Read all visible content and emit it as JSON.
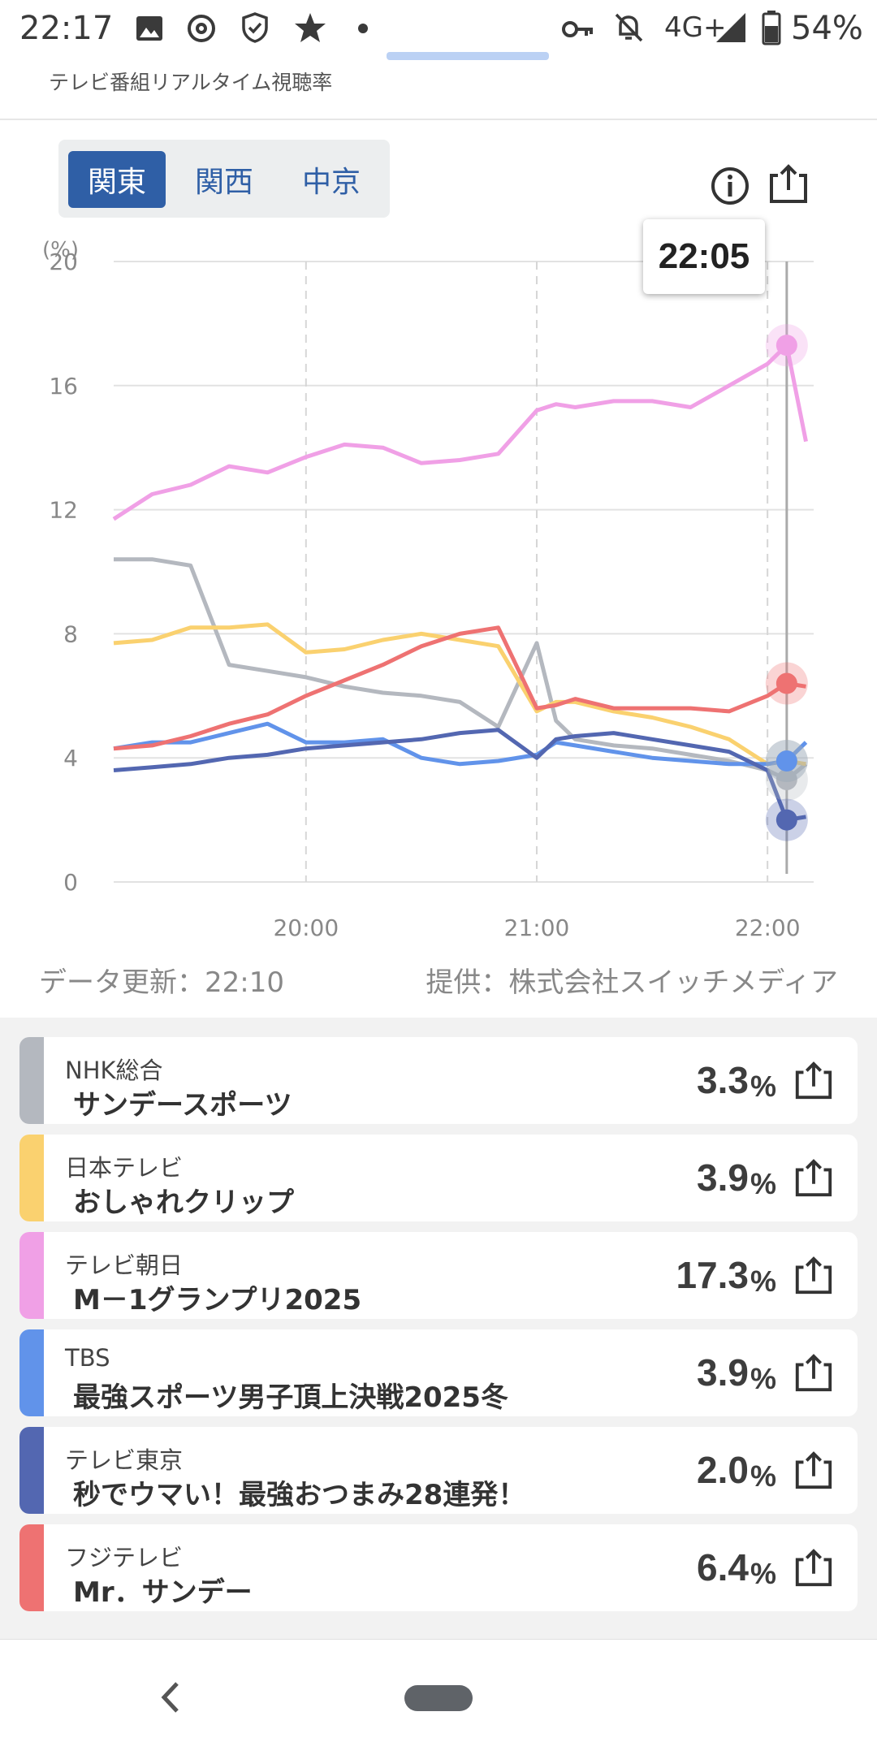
{
  "status_bar": {
    "time": "22:17",
    "network": "4G+",
    "battery": "54%",
    "icons": [
      "image-icon",
      "threads-icon",
      "shield-icon",
      "star-icon",
      "dot-icon",
      "key-icon",
      "bell-off-icon",
      "signal-icon",
      "battery-icon"
    ]
  },
  "header": {
    "subtitle": "テレビ番組リアルタイム視聴率"
  },
  "region_tabs": [
    {
      "label": "関東",
      "active": true
    },
    {
      "label": "関西",
      "active": false
    },
    {
      "label": "中京",
      "active": false
    }
  ],
  "tooltip": {
    "time": "22:05"
  },
  "chart_footer": {
    "updated": "データ更新：22:10",
    "provider": "提供：株式会社スイッチメディア"
  },
  "colors": {
    "accent": "#2f5fa6",
    "nhk": "#b4b8bf",
    "ntv": "#fad16f",
    "tvasahi": "#f0a0e6",
    "tbs": "#6193ea",
    "tvtokyo": "#5367b1",
    "fuji": "#ee7272"
  },
  "chart_data": {
    "type": "line",
    "ylabel": "(%)",
    "ylim": [
      0,
      20
    ],
    "yticks": [
      "0",
      "4",
      "8",
      "12",
      "16",
      "20"
    ],
    "xlim": [
      "19:10",
      "22:12"
    ],
    "xticks": [
      "20:00",
      "21:00",
      "22:00"
    ],
    "x": [
      "19:10",
      "19:20",
      "19:30",
      "19:40",
      "19:50",
      "20:00",
      "20:10",
      "20:20",
      "20:30",
      "20:40",
      "20:50",
      "21:00",
      "21:05",
      "21:10",
      "21:20",
      "21:30",
      "21:40",
      "21:50",
      "22:00",
      "22:05",
      "22:10"
    ],
    "series": [
      {
        "name": "NHK総合",
        "values": [
          10.4,
          10.4,
          10.2,
          7.0,
          6.8,
          6.6,
          6.3,
          6.1,
          6.0,
          5.8,
          5.0,
          7.7,
          5.2,
          4.6,
          4.4,
          4.3,
          4.1,
          3.9,
          3.6,
          3.3,
          3.8
        ]
      },
      {
        "name": "日本テレビ",
        "values": [
          7.7,
          7.8,
          8.2,
          8.2,
          8.3,
          7.4,
          7.5,
          7.8,
          8.0,
          7.8,
          7.6,
          5.5,
          5.8,
          5.8,
          5.5,
          5.3,
          5.0,
          4.6,
          3.8,
          3.9,
          3.8
        ]
      },
      {
        "name": "テレビ朝日",
        "values": [
          11.7,
          12.5,
          12.8,
          13.4,
          13.2,
          13.7,
          14.1,
          14.0,
          13.5,
          13.6,
          13.8,
          15.2,
          15.4,
          15.3,
          15.5,
          15.5,
          15.3,
          16.0,
          16.7,
          17.3,
          14.2
        ]
      },
      {
        "name": "TBS",
        "values": [
          4.3,
          4.5,
          4.5,
          4.8,
          5.1,
          4.5,
          4.5,
          4.6,
          4.0,
          3.8,
          3.9,
          4.1,
          4.5,
          4.4,
          4.2,
          4.0,
          3.9,
          3.8,
          3.8,
          3.9,
          4.5
        ]
      },
      {
        "name": "テレビ東京",
        "values": [
          3.6,
          3.7,
          3.8,
          4.0,
          4.1,
          4.3,
          4.4,
          4.5,
          4.6,
          4.8,
          4.9,
          4.0,
          4.6,
          4.7,
          4.8,
          4.6,
          4.4,
          4.2,
          3.6,
          2.0,
          2.1
        ]
      },
      {
        "name": "フジテレビ",
        "values": [
          4.3,
          4.4,
          4.7,
          5.1,
          5.4,
          6.0,
          6.5,
          7.0,
          7.6,
          8.0,
          8.2,
          5.6,
          5.7,
          5.9,
          5.6,
          5.6,
          5.6,
          5.5,
          6.0,
          6.4,
          6.3
        ]
      }
    ],
    "highlight_x": "22:05"
  },
  "programs": [
    {
      "channel": "NHK総合",
      "title": "サンデースポーツ",
      "rating": "3.3",
      "unit": "%",
      "color": "#b4b8bf"
    },
    {
      "channel": "日本テレビ",
      "title": "おしゃれクリップ",
      "rating": "3.9",
      "unit": "%",
      "color": "#fad16f"
    },
    {
      "channel": "テレビ朝日",
      "title": "M－1グランプリ2025",
      "rating": "17.3",
      "unit": "%",
      "color": "#f0a0e6"
    },
    {
      "channel": "TBS",
      "title": "最強スポーツ男子頂上決戦2025冬",
      "rating": "3.9",
      "unit": "%",
      "color": "#6193ea"
    },
    {
      "channel": "テレビ東京",
      "title": "秒でウマい！最強おつまみ28連発！",
      "rating": "2.0",
      "unit": "%",
      "color": "#5367b1"
    },
    {
      "channel": "フジテレビ",
      "title": "Mr．サンデー",
      "rating": "6.4",
      "unit": "%",
      "color": "#ee7272"
    }
  ]
}
